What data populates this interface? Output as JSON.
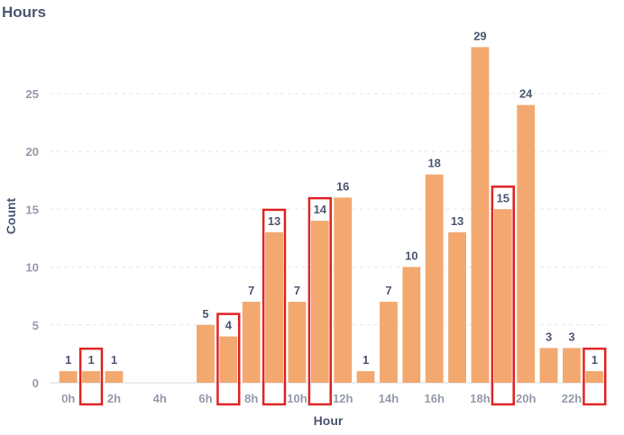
{
  "chart_data": {
    "type": "bar",
    "title": "Hours",
    "xlabel": "Hour",
    "ylabel": "Count",
    "ylim": [
      0,
      30
    ],
    "yticks": [
      0,
      5,
      10,
      15,
      20,
      25
    ],
    "grid": true,
    "categories": [
      "0h",
      "1h",
      "2h",
      "3h",
      "4h",
      "5h",
      "6h",
      "7h",
      "8h",
      "9h",
      "10h",
      "11h",
      "12h",
      "13h",
      "14h",
      "15h",
      "16h",
      "17h",
      "18h",
      "19h",
      "20h",
      "21h",
      "22h",
      "23h"
    ],
    "x_tick_labels": [
      "0h",
      "2h",
      "4h",
      "6h",
      "8h",
      "10h",
      "12h",
      "14h",
      "16h",
      "18h",
      "20h",
      "22h"
    ],
    "values": [
      1,
      1,
      1,
      0,
      0,
      0,
      5,
      4,
      7,
      13,
      7,
      14,
      16,
      1,
      7,
      10,
      18,
      13,
      29,
      15,
      24,
      3,
      3,
      1
    ],
    "highlighted": [
      "1h",
      "7h",
      "9h",
      "11h",
      "19h",
      "23h"
    ],
    "bar_color": "#f2a86f",
    "highlight_color": "#e02424"
  }
}
